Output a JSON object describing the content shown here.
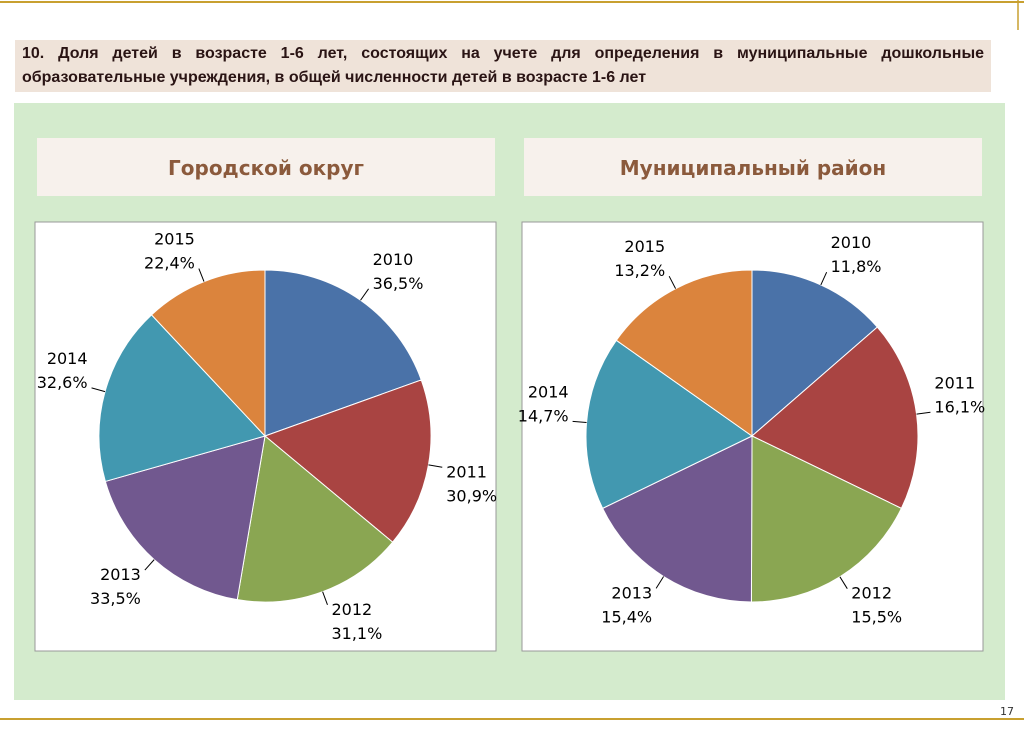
{
  "title": "10. Доля детей в возрасте 1-6 лет, состоящих на учете для определения в муниципальные дошкольные образовательные учреждения, в общей численности детей в возрасте 1-6 лет",
  "page_number": "17",
  "chart_data": [
    {
      "type": "pie",
      "title": "Городской округ",
      "categories": [
        "2010",
        "2011",
        "2012",
        "2013",
        "2014",
        "2015"
      ],
      "values": [
        36.5,
        30.9,
        31.1,
        33.5,
        32.6,
        22.4
      ],
      "value_labels": [
        "36,5%",
        "30,9%",
        "31,1%",
        "33,5%",
        "32,6%",
        "22,4%"
      ],
      "colors": [
        "#4a72a8",
        "#a94442",
        "#8aa652",
        "#71588f",
        "#4298b0",
        "#db843d"
      ]
    },
    {
      "type": "pie",
      "title": "Муниципальный район",
      "categories": [
        "2010",
        "2011",
        "2012",
        "2013",
        "2014",
        "2015"
      ],
      "values": [
        11.8,
        16.1,
        15.5,
        15.4,
        14.7,
        13.2
      ],
      "value_labels": [
        "11,8%",
        "16,1%",
        "15,5%",
        "15,4%",
        "14,7%",
        "13,2%"
      ],
      "colors": [
        "#4a72a8",
        "#a94442",
        "#8aa652",
        "#71588f",
        "#4298b0",
        "#db843d"
      ]
    }
  ]
}
